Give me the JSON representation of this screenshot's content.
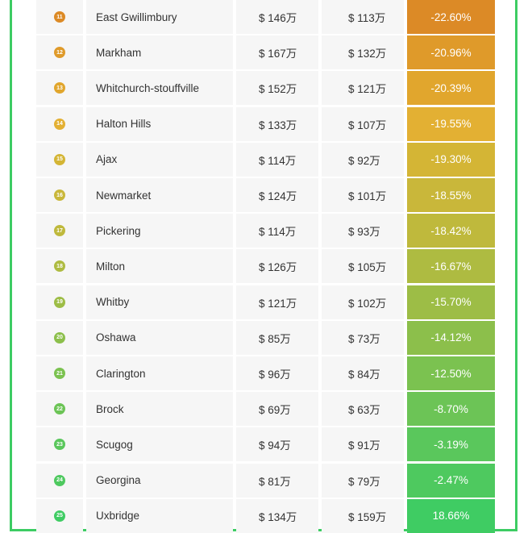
{
  "chart_data": {
    "type": "table",
    "columns": [
      "rank",
      "city",
      "price_1",
      "price_2",
      "change_pct"
    ],
    "rows": [
      {
        "rank": "11",
        "city": "East Gwillimbury",
        "price_1": "$ 146万",
        "price_2": "$ 113万",
        "change": "-22.60%",
        "value": -22.6,
        "color": "#dc8a26"
      },
      {
        "rank": "12",
        "city": "Markham",
        "price_1": "$ 167万",
        "price_2": "$ 132万",
        "change": "-20.96%",
        "value": -20.96,
        "color": "#df9a2a"
      },
      {
        "rank": "13",
        "city": "Whitchurch-stouffville",
        "price_1": "$ 152万",
        "price_2": "$ 121万",
        "change": "-20.39%",
        "value": -20.39,
        "color": "#e1a62d"
      },
      {
        "rank": "14",
        "city": "Halton Hills",
        "price_1": "$ 133万",
        "price_2": "$ 107万",
        "change": "-19.55%",
        "value": -19.55,
        "color": "#e3b033"
      },
      {
        "rank": "15",
        "city": "Ajax",
        "price_1": "$ 114万",
        "price_2": "$ 92万",
        "change": "-19.30%",
        "value": -19.3,
        "color": "#d4b535"
      },
      {
        "rank": "16",
        "city": "Newmarket",
        "price_1": "$ 124万",
        "price_2": "$ 101万",
        "change": "-18.55%",
        "value": -18.55,
        "color": "#c9b73a"
      },
      {
        "rank": "17",
        "city": "Pickering",
        "price_1": "$ 114万",
        "price_2": "$ 93万",
        "change": "-18.42%",
        "value": -18.42,
        "color": "#bfb93c"
      },
      {
        "rank": "18",
        "city": "Milton",
        "price_1": "$ 126万",
        "price_2": "$ 105万",
        "change": "-16.67%",
        "value": -16.67,
        "color": "#aebb41"
      },
      {
        "rank": "19",
        "city": "Whitby",
        "price_1": "$ 121万",
        "price_2": "$ 102万",
        "change": "-15.70%",
        "value": -15.7,
        "color": "#9dbd46"
      },
      {
        "rank": "20",
        "city": "Oshawa",
        "price_1": "$ 85万",
        "price_2": "$ 73万",
        "change": "-14.12%",
        "value": -14.12,
        "color": "#8cbf4b"
      },
      {
        "rank": "21",
        "city": "Clarington",
        "price_1": "$ 96万",
        "price_2": "$ 84万",
        "change": "-12.50%",
        "value": -12.5,
        "color": "#7bc250"
      },
      {
        "rank": "22",
        "city": "Brock",
        "price_1": "$ 69万",
        "price_2": "$ 63万",
        "change": "-8.70%",
        "value": -8.7,
        "color": "#6cc456"
      },
      {
        "rank": "23",
        "city": "Scugog",
        "price_1": "$ 94万",
        "price_2": "$ 91万",
        "change": "-3.19%",
        "value": -3.19,
        "color": "#5ac75c"
      },
      {
        "rank": "24",
        "city": "Georgina",
        "price_1": "$ 81万",
        "price_2": "$ 79万",
        "change": "-2.47%",
        "value": -2.47,
        "color": "#4ec95f"
      },
      {
        "rank": "25",
        "city": "Uxbridge",
        "price_1": "$ 134万",
        "price_2": "$ 159万",
        "change": "18.66%",
        "value": 18.66,
        "color": "#3fcc63"
      }
    ]
  },
  "frame_color": "#3dcc63"
}
